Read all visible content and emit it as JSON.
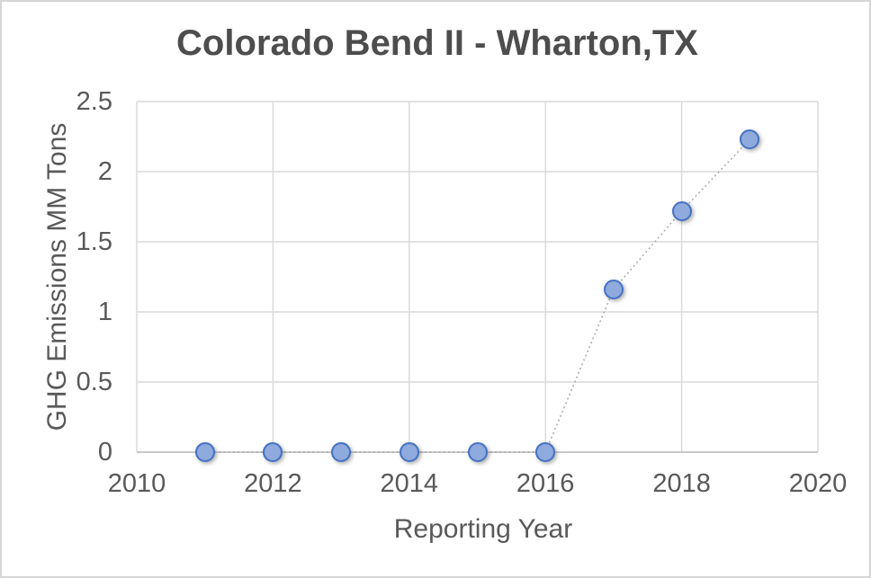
{
  "chart_data": {
    "type": "scatter",
    "title": "Colorado Bend II - Wharton,TX",
    "xlabel": "Reporting Year",
    "ylabel": "GHG Emissions MM Tons",
    "x": [
      2011,
      2012,
      2013,
      2014,
      2015,
      2016,
      2017,
      2018,
      2019
    ],
    "y": [
      0,
      0,
      0,
      0,
      0,
      0,
      1.16,
      1.72,
      2.23
    ],
    "xlim": [
      2010,
      2020
    ],
    "ylim": [
      0,
      2.5
    ],
    "x_ticks": [
      2010,
      2012,
      2014,
      2016,
      2018,
      2020
    ],
    "y_ticks": [
      0,
      0.5,
      1,
      1.5,
      2,
      2.5
    ],
    "y_tick_labels": [
      "0",
      "0.5",
      "1",
      "1.5",
      "2",
      "2.5"
    ],
    "x_tick_labels": [
      "2010",
      "2012",
      "2014",
      "2016",
      "2018",
      "2020"
    ],
    "grid": "both",
    "legend": "none",
    "line_style": "dotted",
    "colors": {
      "marker_fill": "#8faadc",
      "marker_border": "#4472c4",
      "connector_line": "#a6a6a6",
      "gridline": "#d9d9d9",
      "axis_line": "#c9c9c9",
      "tick_text": "#595959",
      "title_text": "#4d4d4d",
      "background": "#ffffff"
    }
  }
}
